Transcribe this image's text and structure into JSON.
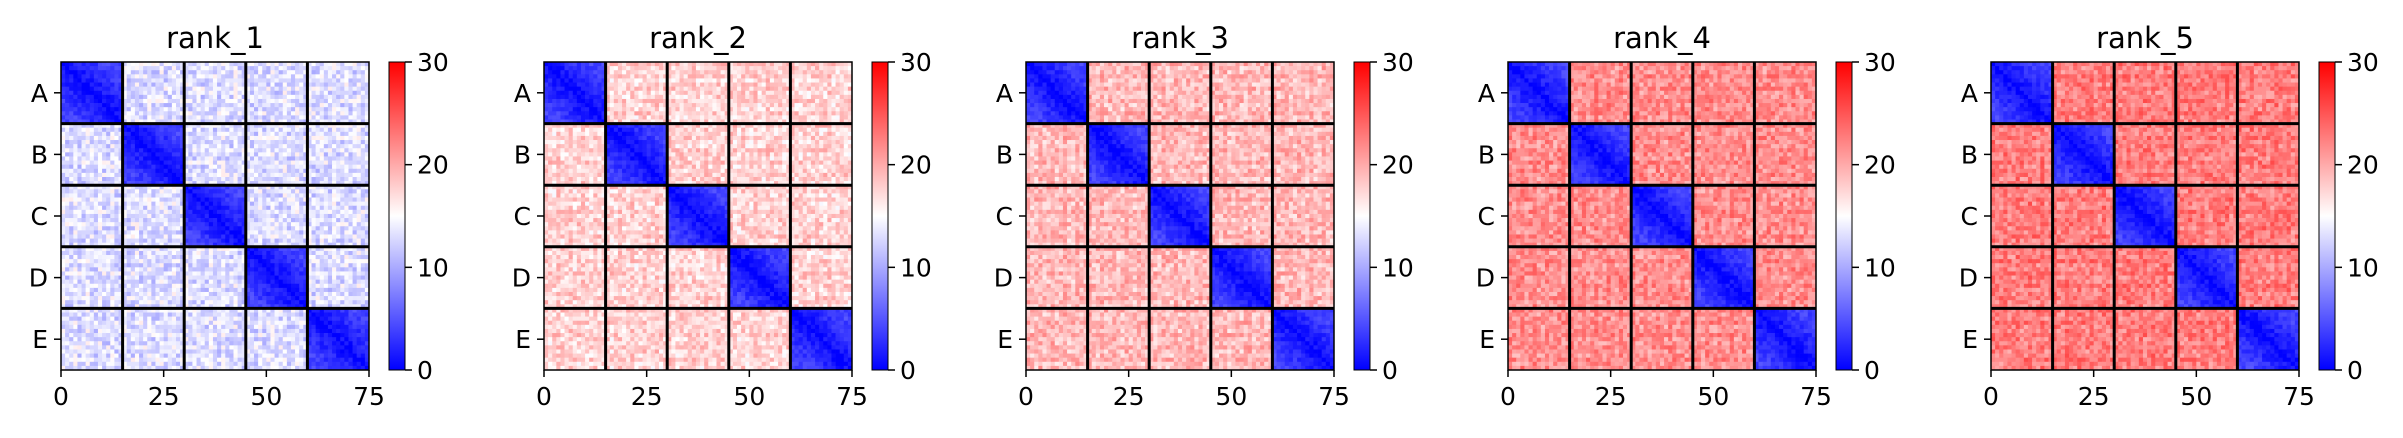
{
  "chart_data": [
    {
      "type": "heatmap",
      "title": "rank_1",
      "row_labels": [
        "A",
        "B",
        "C",
        "D",
        "E"
      ],
      "x_ticks": [
        0,
        25,
        50,
        75
      ],
      "xlim": [
        0,
        75
      ],
      "matrix_size": 75,
      "block_size": 15,
      "colorbar": {
        "min": 0,
        "max": 30,
        "ticks": [
          0,
          10,
          20,
          30
        ],
        "colormap": "bwr"
      },
      "within_block_value": 4,
      "between_block_value": 12.5
    },
    {
      "type": "heatmap",
      "title": "rank_2",
      "row_labels": [
        "A",
        "B",
        "C",
        "D",
        "E"
      ],
      "x_ticks": [
        0,
        25,
        50,
        75
      ],
      "xlim": [
        0,
        75
      ],
      "matrix_size": 75,
      "block_size": 15,
      "colorbar": {
        "min": 0,
        "max": 30,
        "ticks": [
          0,
          10,
          20,
          30
        ],
        "colormap": "bwr"
      },
      "within_block_value": 4,
      "between_block_value": 17
    },
    {
      "type": "heatmap",
      "title": "rank_3",
      "row_labels": [
        "A",
        "B",
        "C",
        "D",
        "E"
      ],
      "x_ticks": [
        0,
        25,
        50,
        75
      ],
      "xlim": [
        0,
        75
      ],
      "matrix_size": 75,
      "block_size": 15,
      "colorbar": {
        "min": 0,
        "max": 30,
        "ticks": [
          0,
          10,
          20,
          30
        ],
        "colormap": "bwr"
      },
      "within_block_value": 4,
      "between_block_value": 18.5
    },
    {
      "type": "heatmap",
      "title": "rank_4",
      "row_labels": [
        "A",
        "B",
        "C",
        "D",
        "E"
      ],
      "x_ticks": [
        0,
        25,
        50,
        75
      ],
      "xlim": [
        0,
        75
      ],
      "matrix_size": 75,
      "block_size": 15,
      "colorbar": {
        "min": 0,
        "max": 30,
        "ticks": [
          0,
          10,
          20,
          30
        ],
        "colormap": "bwr"
      },
      "within_block_value": 4,
      "between_block_value": 21
    },
    {
      "type": "heatmap",
      "title": "rank_5",
      "row_labels": [
        "A",
        "B",
        "C",
        "D",
        "E"
      ],
      "x_ticks": [
        0,
        25,
        50,
        75
      ],
      "xlim": [
        0,
        75
      ],
      "matrix_size": 75,
      "block_size": 15,
      "colorbar": {
        "min": 0,
        "max": 30,
        "ticks": [
          0,
          10,
          20,
          30
        ],
        "colormap": "bwr"
      },
      "within_block_value": 4,
      "between_block_value": 22
    }
  ],
  "colors": {
    "low": "#0000ff",
    "mid": "#ffffff",
    "high": "#ff0000",
    "block_border": "#000000"
  }
}
